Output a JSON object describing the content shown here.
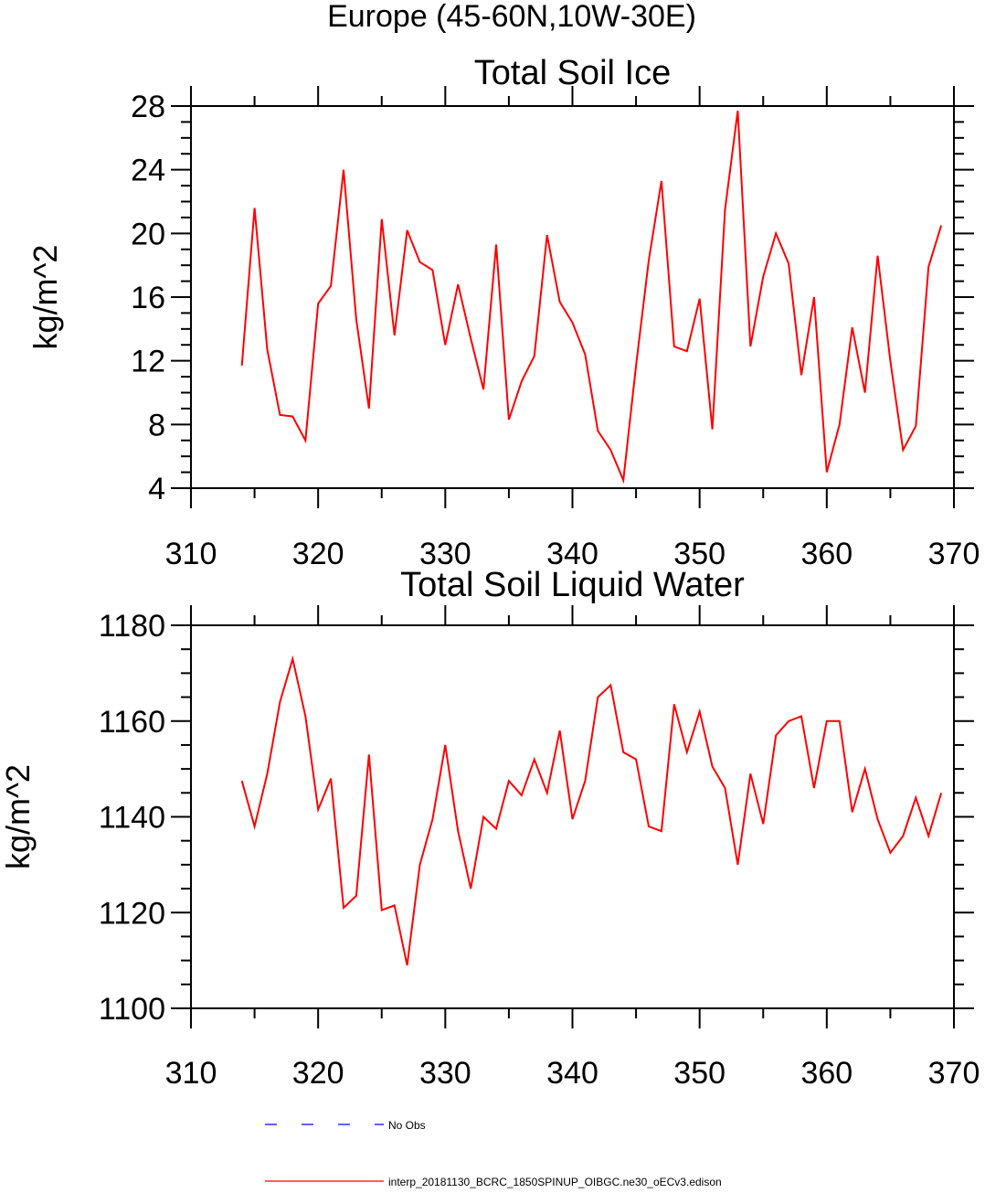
{
  "main_title": "Europe (45-60N,10W-30E)",
  "chart_data": [
    {
      "type": "line",
      "title": "Total Soil Ice",
      "xlabel": "",
      "ylabel": "kg/m^2",
      "xlim": [
        310,
        370
      ],
      "ylim": [
        4,
        28
      ],
      "xticks": [
        310,
        320,
        330,
        340,
        350,
        360,
        370
      ],
      "yticks": [
        4,
        8,
        12,
        16,
        20,
        24,
        28
      ],
      "x_minor_step": 5,
      "y_minor_step": 1,
      "grid": false,
      "series": [
        {
          "name": "interp_20181130_BCRC_1850SPINUP_OIBGC.ne30_oECv3.edison",
          "color": "#ff0000",
          "x": [
            314,
            315,
            316,
            317,
            318,
            319,
            320,
            321,
            322,
            323,
            324,
            325,
            326,
            327,
            328,
            329,
            330,
            331,
            332,
            333,
            334,
            335,
            336,
            337,
            338,
            339,
            340,
            341,
            342,
            343,
            344,
            345,
            346,
            347,
            348,
            349,
            350,
            351,
            352,
            353,
            354,
            355,
            356,
            357,
            358,
            359,
            360,
            361,
            362,
            363,
            364,
            365,
            366,
            367,
            368,
            369
          ],
          "values": [
            11.7,
            21.6,
            12.7,
            8.6,
            8.5,
            7.0,
            15.6,
            16.7,
            24.0,
            14.6,
            9.0,
            20.9,
            13.6,
            20.2,
            18.2,
            17.7,
            13.0,
            16.8,
            13.4,
            10.2,
            19.3,
            8.3,
            10.7,
            12.3,
            19.9,
            15.7,
            14.4,
            12.4,
            7.6,
            6.4,
            4.5,
            11.7,
            18.3,
            23.3,
            12.9,
            12.6,
            15.9,
            7.7,
            21.5,
            27.7,
            12.9,
            17.3,
            20.0,
            18.1,
            11.1,
            16.0,
            5.0,
            8.0,
            14.1,
            10.0,
            18.6,
            12.0,
            6.4,
            7.9,
            17.9,
            20.5
          ]
        }
      ]
    },
    {
      "type": "line",
      "title": "Total Soil Liquid Water",
      "xlabel": "",
      "ylabel": "kg/m^2",
      "xlim": [
        310,
        370
      ],
      "ylim": [
        1100,
        1180
      ],
      "xticks": [
        310,
        320,
        330,
        340,
        350,
        360,
        370
      ],
      "yticks": [
        1100,
        1120,
        1140,
        1160,
        1180
      ],
      "x_minor_step": 5,
      "y_minor_step": 5,
      "grid": false,
      "series": [
        {
          "name": "interp_20181130_BCRC_1850SPINUP_OIBGC.ne30_oECv3.edison",
          "color": "#ff0000",
          "x": [
            314,
            315,
            316,
            317,
            318,
            319,
            320,
            321,
            322,
            323,
            324,
            325,
            326,
            327,
            328,
            329,
            330,
            331,
            332,
            333,
            334,
            335,
            336,
            337,
            338,
            339,
            340,
            341,
            342,
            343,
            344,
            345,
            346,
            347,
            348,
            349,
            350,
            351,
            352,
            353,
            354,
            355,
            356,
            357,
            358,
            359,
            360,
            361,
            362,
            363,
            364,
            365,
            366,
            367,
            368,
            369
          ],
          "values": [
            1147.5,
            1138.0,
            1149.0,
            1164.0,
            1173.0,
            1161.0,
            1141.5,
            1148.0,
            1121.0,
            1123.5,
            1153.0,
            1120.5,
            1121.5,
            1109.0,
            1130.0,
            1139.5,
            1155.0,
            1137.0,
            1125.0,
            1140.0,
            1137.5,
            1147.5,
            1144.5,
            1152.0,
            1145.0,
            1158.0,
            1139.5,
            1147.5,
            1165.0,
            1167.5,
            1153.5,
            1152.0,
            1138.0,
            1137.0,
            1163.5,
            1153.5,
            1162.0,
            1150.5,
            1146.0,
            1130.0,
            1149.0,
            1138.5,
            1157.0,
            1160.0,
            1161.0,
            1146.0,
            1160.0,
            1160.0,
            1141.0,
            1150.0,
            1139.5,
            1132.5,
            1136.0,
            1144.0,
            1136.0,
            1145.0
          ]
        }
      ]
    }
  ],
  "legend": [
    {
      "label": "No Obs",
      "color": "#0000ff",
      "dash": true
    },
    {
      "label": "interp_20181130_BCRC_1850SPINUP_OIBGC.ne30_oECv3.edison",
      "color": "#ff0000",
      "dash": false
    }
  ]
}
